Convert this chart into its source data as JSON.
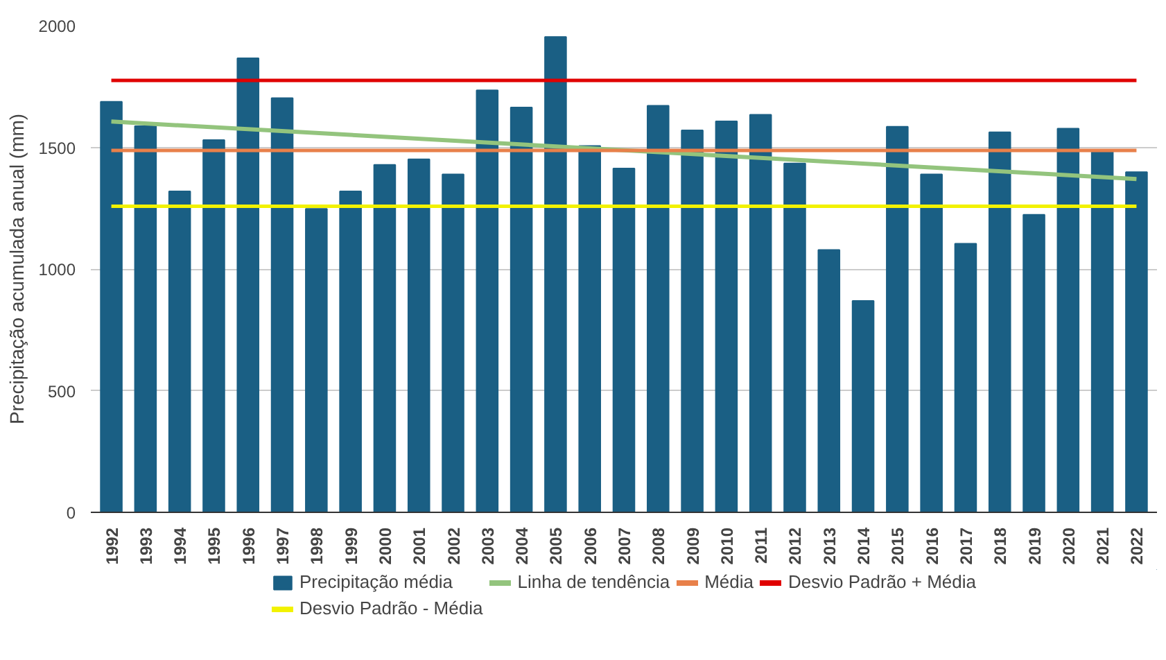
{
  "chart_data": {
    "type": "bar",
    "ylabel": "Precipitação acumulada anual (mm)",
    "categories": [
      "1992",
      "1993",
      "1994",
      "1995",
      "1996",
      "1997",
      "1998",
      "1999",
      "2000",
      "2001",
      "2002",
      "2003",
      "2004",
      "2005",
      "2006",
      "2007",
      "2008",
      "2009",
      "2010",
      "2011",
      "2012",
      "2013",
      "2014",
      "2015",
      "2016",
      "2017",
      "2018",
      "2019",
      "2020",
      "2021",
      "2022"
    ],
    "series": [
      {
        "name": "Precipitação média",
        "color": "#1a5f84",
        "values": [
          1687,
          1587,
          1319,
          1530,
          1866,
          1702,
          1247,
          1319,
          1428,
          1451,
          1389,
          1734,
          1664,
          1954,
          1506,
          1413,
          1671,
          1570,
          1607,
          1634,
          1434,
          1078,
          869,
          1585,
          1389,
          1104,
          1562,
          1223,
          1577,
          1489,
          1398
        ]
      },
      {
        "name": "Linha de tendência",
        "type": "line",
        "color": "#93c47d",
        "values": [
          1606,
          null,
          null,
          null,
          null,
          null,
          null,
          null,
          null,
          null,
          null,
          null,
          null,
          null,
          null,
          null,
          null,
          null,
          null,
          null,
          null,
          null,
          null,
          null,
          null,
          null,
          null,
          null,
          null,
          null,
          1370
        ]
      }
    ],
    "ref_lines": [
      {
        "axis": "y",
        "value": 1487,
        "label": "Média",
        "color": "#e8804a"
      },
      {
        "axis": "y",
        "value": 1775,
        "label": "Desvio Padrão + Média",
        "color": "#e00000"
      },
      {
        "axis": "y",
        "value": 1258,
        "label": "Desvio Padrão - Média",
        "color": "#f2f200"
      }
    ],
    "ylim": [
      0,
      2000
    ],
    "yticks": [
      0,
      500,
      1000,
      1500,
      2000
    ],
    "grid": "y",
    "legend": "bottom"
  }
}
